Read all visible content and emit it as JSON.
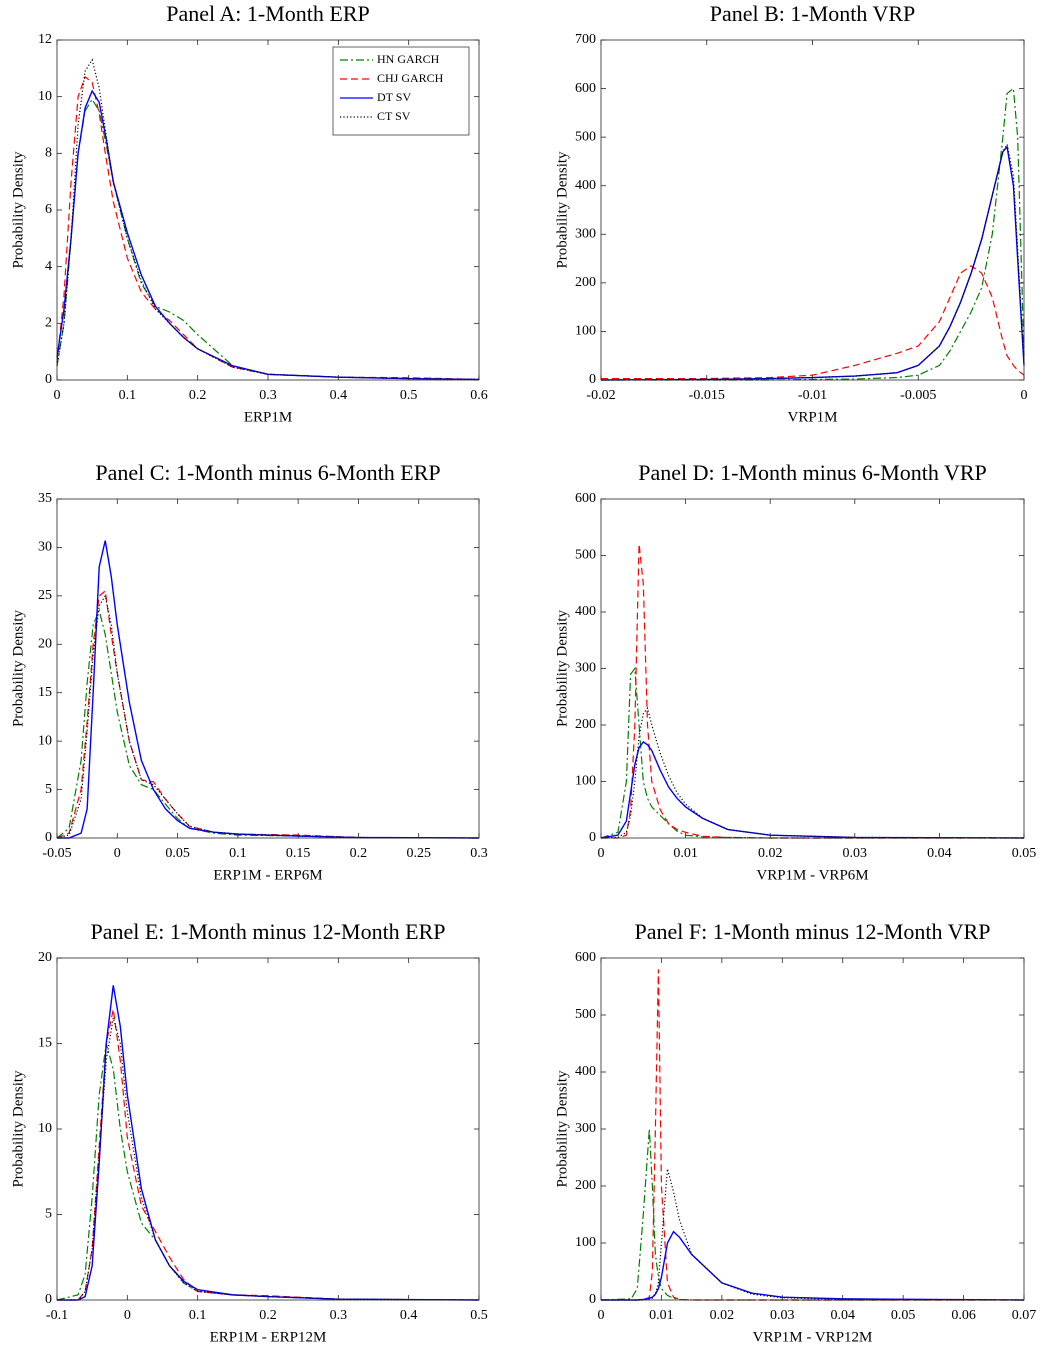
{
  "chart_data": [
    {
      "type": "line",
      "title": "Panel A: 1-Month ERP",
      "xlabel": "ERP1M",
      "ylabel": "Probability Density",
      "x": [
        0,
        0.01,
        0.02,
        0.03,
        0.04,
        0.05,
        0.06,
        0.07,
        0.08,
        0.1,
        0.12,
        0.14,
        0.16,
        0.18,
        0.2,
        0.25,
        0.3,
        0.4,
        0.5,
        0.6
      ],
      "xlim": [
        0,
        0.6
      ],
      "xticks": [
        0,
        0.1,
        0.2,
        0.3,
        0.4,
        0.5,
        0.6
      ],
      "ylim": [
        0,
        12
      ],
      "yticks": [
        0,
        2,
        4,
        6,
        8,
        10,
        12
      ],
      "legend": "upper right",
      "series": [
        {
          "name": "HN GARCH",
          "color": "#008000",
          "style": "dashdot",
          "values": [
            0.5,
            2,
            5,
            8,
            9.5,
            9.9,
            9.5,
            8.3,
            7,
            5,
            3.4,
            2.6,
            2.4,
            2.1,
            1.6,
            0.5,
            0.2,
            0.1,
            0.05,
            0.02
          ]
        },
        {
          "name": "CHJ GARCH",
          "color": "#ff0000",
          "style": "dashed",
          "values": [
            0.6,
            3,
            7,
            10,
            10.7,
            10.5,
            9.4,
            7.8,
            6.3,
            4.3,
            3.1,
            2.5,
            2.1,
            1.6,
            1.1,
            0.45,
            0.2,
            0.1,
            0.08,
            0.02
          ]
        },
        {
          "name": "DT SV",
          "color": "#0000ff",
          "style": "solid",
          "values": [
            0.8,
            2.5,
            5,
            8,
            9.6,
            10.2,
            9.8,
            8.5,
            7,
            5.2,
            3.7,
            2.6,
            2,
            1.5,
            1.1,
            0.5,
            0.2,
            0.1,
            0.05,
            0.02
          ]
        },
        {
          "name": "CT SV",
          "color": "#000000",
          "style": "dotted",
          "values": [
            0.5,
            2,
            5,
            9,
            10.9,
            11.3,
            10.3,
            8.6,
            7,
            5,
            3.5,
            2.5,
            2,
            1.5,
            1.1,
            0.45,
            0.2,
            0.1,
            0.05,
            0.02
          ]
        }
      ]
    },
    {
      "type": "line",
      "title": "Panel B: 1-Month VRP",
      "xlabel": "VRP1M",
      "ylabel": "Probability Density",
      "x": [
        -0.02,
        -0.015,
        -0.012,
        -0.01,
        -0.008,
        -0.006,
        -0.005,
        -0.004,
        -0.0035,
        -0.003,
        -0.0025,
        -0.002,
        -0.0015,
        -0.001,
        -0.0008,
        -0.0005,
        -0.0003,
        0
      ],
      "xlim": [
        -0.02,
        0
      ],
      "xticks": [
        -0.02,
        -0.015,
        -0.01,
        -0.005,
        0
      ],
      "ylim": [
        0,
        700
      ],
      "yticks": [
        0,
        100,
        200,
        300,
        400,
        500,
        600,
        700
      ],
      "series": [
        {
          "color": "#008000",
          "style": "dashdot",
          "values": [
            0,
            0,
            0,
            1,
            2,
            5,
            10,
            30,
            60,
            100,
            140,
            190,
            300,
            500,
            590,
            600,
            500,
            50
          ]
        },
        {
          "color": "#ff0000",
          "style": "dashed",
          "values": [
            3,
            3,
            5,
            10,
            30,
            55,
            70,
            120,
            170,
            220,
            235,
            220,
            170,
            80,
            50,
            30,
            20,
            10
          ]
        },
        {
          "color": "#0000ff",
          "style": "solid",
          "values": [
            0,
            1,
            3,
            5,
            8,
            15,
            30,
            70,
            110,
            160,
            220,
            290,
            380,
            470,
            480,
            400,
            250,
            30
          ]
        },
        {
          "color": "#000000",
          "style": "dotted",
          "values": [
            0,
            1,
            3,
            5,
            8,
            15,
            30,
            70,
            110,
            160,
            220,
            290,
            380,
            470,
            485,
            420,
            270,
            35
          ]
        }
      ]
    },
    {
      "type": "line",
      "title": "Panel C: 1-Month minus 6-Month ERP",
      "xlabel": "ERP1M - ERP6M",
      "ylabel": "Probability Density",
      "x": [
        -0.05,
        -0.04,
        -0.03,
        -0.025,
        -0.02,
        -0.015,
        -0.01,
        -0.005,
        0,
        0.01,
        0.02,
        0.03,
        0.04,
        0.05,
        0.06,
        0.08,
        0.1,
        0.15,
        0.2,
        0.3
      ],
      "xlim": [
        -0.05,
        0.3
      ],
      "xticks": [
        -0.05,
        0,
        0.05,
        0.1,
        0.15,
        0.2,
        0.25,
        0.3
      ],
      "ylim": [
        0,
        35
      ],
      "yticks": [
        0,
        5,
        10,
        15,
        20,
        25,
        30,
        35
      ],
      "series": [
        {
          "color": "#008000",
          "style": "dashdot",
          "values": [
            0,
            1,
            8,
            16,
            22,
            23.5,
            21,
            17,
            13,
            7.5,
            5.5,
            5,
            3.5,
            2,
            1,
            0.5,
            0.3,
            0.2,
            0.05,
            0
          ]
        },
        {
          "color": "#ff0000",
          "style": "dashed",
          "values": [
            0,
            0.5,
            5,
            12,
            20,
            25,
            25.5,
            21,
            17,
            10,
            6,
            5.8,
            4,
            2.5,
            1.2,
            0.6,
            0.4,
            0.3,
            0.05,
            0
          ]
        },
        {
          "color": "#0000ff",
          "style": "solid",
          "values": [
            0,
            0,
            0.5,
            3,
            15,
            28,
            30.7,
            27,
            22,
            14,
            8,
            5,
            3,
            1.8,
            1,
            0.6,
            0.4,
            0.2,
            0.05,
            0
          ]
        },
        {
          "color": "#000000",
          "style": "dotted",
          "values": [
            0,
            0.3,
            4,
            11,
            19,
            24,
            25,
            22,
            17,
            10,
            6,
            5.5,
            4,
            2.5,
            1.2,
            0.6,
            0.4,
            0.25,
            0.05,
            0
          ]
        }
      ]
    },
    {
      "type": "line",
      "title": "Panel D: 1-Month minus 6-Month VRP",
      "xlabel": "VRP1M - VRP6M",
      "ylabel": "Probability Density",
      "x": [
        0,
        0.002,
        0.003,
        0.0035,
        0.004,
        0.0045,
        0.005,
        0.0055,
        0.006,
        0.007,
        0.008,
        0.009,
        0.01,
        0.012,
        0.015,
        0.02,
        0.03,
        0.05
      ],
      "xlim": [
        0,
        0.05
      ],
      "xticks": [
        0,
        0.01,
        0.02,
        0.03,
        0.04,
        0.05
      ],
      "ylim": [
        0,
        600
      ],
      "yticks": [
        0,
        100,
        200,
        300,
        400,
        500,
        600
      ],
      "series": [
        {
          "color": "#008000",
          "style": "dashdot",
          "values": [
            0,
            10,
            100,
            290,
            300,
            200,
            100,
            70,
            55,
            40,
            25,
            12,
            5,
            2,
            1,
            0,
            0,
            0
          ]
        },
        {
          "color": "#ff0000",
          "style": "dashed",
          "values": [
            0,
            0,
            5,
            50,
            200,
            520,
            450,
            200,
            100,
            50,
            25,
            15,
            10,
            3,
            1,
            0,
            0,
            0
          ]
        },
        {
          "color": "#0000ff",
          "style": "solid",
          "values": [
            0,
            5,
            30,
            80,
            130,
            160,
            170,
            165,
            155,
            120,
            90,
            70,
            55,
            35,
            15,
            5,
            1,
            0
          ]
        },
        {
          "color": "#000000",
          "style": "dotted",
          "values": [
            0,
            1,
            10,
            40,
            100,
            180,
            220,
            230,
            200,
            150,
            110,
            80,
            60,
            35,
            15,
            5,
            1,
            0
          ]
        }
      ]
    },
    {
      "type": "line",
      "title": "Panel E: 1-Month minus 12-Month ERP",
      "xlabel": "ERP1M - ERP12M",
      "ylabel": "Probability Density",
      "x": [
        -0.1,
        -0.07,
        -0.06,
        -0.05,
        -0.04,
        -0.03,
        -0.02,
        -0.01,
        0,
        0.02,
        0.04,
        0.06,
        0.08,
        0.1,
        0.15,
        0.2,
        0.3,
        0.5
      ],
      "xlim": [
        -0.1,
        0.5
      ],
      "xticks": [
        -0.1,
        0,
        0.1,
        0.2,
        0.3,
        0.4,
        0.5
      ],
      "ylim": [
        0,
        20
      ],
      "yticks": [
        0,
        5,
        10,
        15,
        20
      ],
      "series": [
        {
          "color": "#008000",
          "style": "dashdot",
          "values": [
            0,
            0.3,
            1.5,
            6,
            12,
            15,
            13.5,
            10,
            7.5,
            4.5,
            3.5,
            2,
            1,
            0.5,
            0.3,
            0.2,
            0.05,
            0
          ]
        },
        {
          "color": "#ff0000",
          "style": "dashed",
          "values": [
            0,
            0,
            0.5,
            3,
            9,
            15,
            17,
            14,
            9.5,
            5.5,
            4,
            2.5,
            1.2,
            0.5,
            0.3,
            0.25,
            0.05,
            0
          ]
        },
        {
          "color": "#0000ff",
          "style": "solid",
          "values": [
            0,
            0,
            0.2,
            2,
            8,
            15,
            18.4,
            16,
            12,
            6.5,
            3.5,
            2,
            1.1,
            0.6,
            0.3,
            0.2,
            0.05,
            0
          ]
        },
        {
          "color": "#000000",
          "style": "dotted",
          "values": [
            0,
            0,
            0.5,
            3,
            8.5,
            14,
            16.5,
            15,
            11,
            6,
            3.5,
            2,
            1,
            0.5,
            0.3,
            0.2,
            0.05,
            0
          ]
        }
      ]
    },
    {
      "type": "line",
      "title": "Panel F: 1-Month minus 12-Month VRP",
      "xlabel": "VRP1M - VRP12M",
      "ylabel": "Probability Density",
      "x": [
        0,
        0.005,
        0.006,
        0.007,
        0.008,
        0.0085,
        0.009,
        0.0095,
        0.01,
        0.011,
        0.012,
        0.013,
        0.015,
        0.02,
        0.025,
        0.03,
        0.04,
        0.07
      ],
      "xlim": [
        0,
        0.07
      ],
      "xticks": [
        0,
        0.01,
        0.02,
        0.03,
        0.04,
        0.05,
        0.06,
        0.07
      ],
      "ylim": [
        0,
        600
      ],
      "yticks": [
        0,
        100,
        200,
        300,
        400,
        500,
        600
      ],
      "series": [
        {
          "color": "#008000",
          "style": "dashdot",
          "values": [
            0,
            2,
            20,
            150,
            300,
            200,
            80,
            40,
            20,
            8,
            3,
            1,
            0,
            0,
            0,
            0,
            0,
            0
          ]
        },
        {
          "color": "#ff0000",
          "style": "dashed",
          "values": [
            0,
            0,
            0,
            0,
            5,
            50,
            300,
            580,
            200,
            30,
            5,
            1,
            0,
            0,
            0,
            0,
            0,
            0
          ]
        },
        {
          "color": "#0000ff",
          "style": "solid",
          "values": [
            0,
            0,
            0,
            1,
            3,
            5,
            10,
            20,
            40,
            100,
            120,
            110,
            80,
            30,
            12,
            5,
            2,
            0
          ]
        },
        {
          "color": "#000000",
          "style": "dotted",
          "values": [
            0,
            0,
            0,
            0,
            1,
            3,
            10,
            30,
            100,
            230,
            190,
            140,
            80,
            30,
            10,
            4,
            1,
            0
          ]
        }
      ]
    }
  ]
}
